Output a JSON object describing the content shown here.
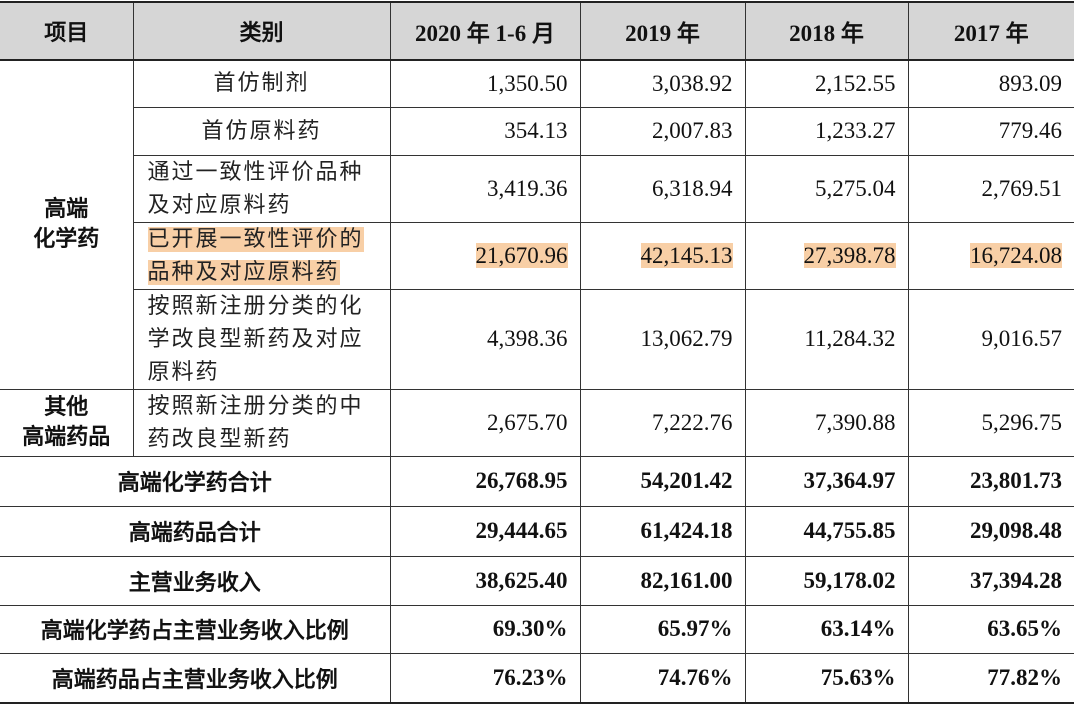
{
  "table": {
    "header": [
      "项目",
      "类别",
      "2020 年 1-6 月",
      "2019 年",
      "2018 年",
      "2017 年"
    ],
    "groups": [
      {
        "label": [
          "高端",
          "化学药"
        ],
        "rows": [
          {
            "category": [
              "首仿制剂"
            ],
            "values": [
              "1,350.50",
              "3,038.92",
              "2,152.55",
              "893.09"
            ]
          },
          {
            "category": [
              "首仿原料药"
            ],
            "values": [
              "354.13",
              "2,007.83",
              "1,233.27",
              "779.46"
            ]
          },
          {
            "category": [
              "通过一致性评价品种",
              "及对应原料药"
            ],
            "values": [
              "3,419.36",
              "6,318.94",
              "5,275.04",
              "2,769.51"
            ]
          },
          {
            "category": [
              "已开展一致性评价的",
              "品种及对应原料药"
            ],
            "values": [
              "21,670.96",
              "42,145.13",
              "27,398.78",
              "16,724.08"
            ],
            "highlight": true
          },
          {
            "category": [
              "按照新注册分类的化",
              "学改良型新药及对应",
              "原料药"
            ],
            "values": [
              "4,398.36",
              "13,062.79",
              "11,284.32",
              "9,016.57"
            ]
          }
        ]
      },
      {
        "label": [
          "其他",
          "高端药品"
        ],
        "rows": [
          {
            "category": [
              "按照新注册分类的中",
              "药改良型新药"
            ],
            "values": [
              "2,675.70",
              "7,222.76",
              "7,390.88",
              "5,296.75"
            ]
          }
        ]
      }
    ],
    "totals": [
      {
        "label": "高端化学药合计",
        "values": [
          "26,768.95",
          "54,201.42",
          "37,364.97",
          "23,801.73"
        ]
      },
      {
        "label": "高端药品合计",
        "values": [
          "29,444.65",
          "61,424.18",
          "44,755.85",
          "29,098.48"
        ]
      },
      {
        "label": "主营业务收入",
        "values": [
          "38,625.40",
          "82,161.00",
          "59,178.02",
          "37,394.28"
        ]
      },
      {
        "label": "高端化学药占主营业务收入比例",
        "values": [
          "69.30%",
          "65.97%",
          "63.14%",
          "63.65%"
        ]
      },
      {
        "label": "高端药品占主营业务收入比例",
        "values": [
          "76.23%",
          "74.76%",
          "75.63%",
          "77.82%"
        ]
      }
    ]
  }
}
